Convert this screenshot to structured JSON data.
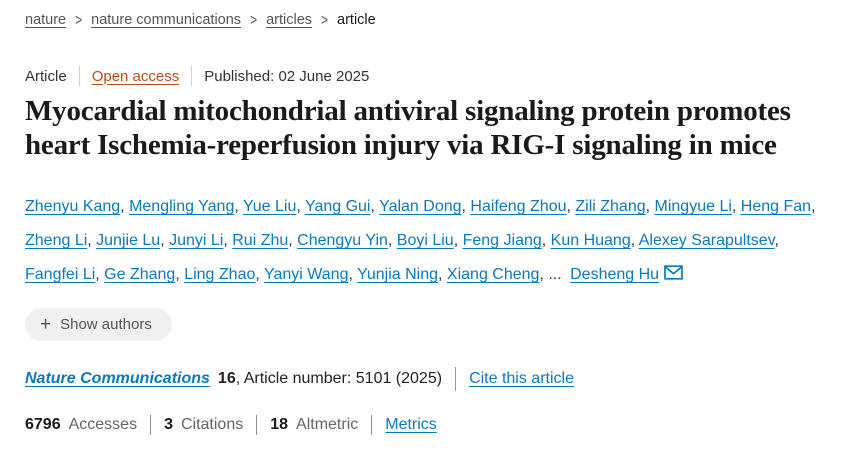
{
  "breadcrumb": {
    "separator": ">",
    "items": [
      {
        "label": "nature",
        "link": true
      },
      {
        "label": "nature communications",
        "link": true
      },
      {
        "label": "articles",
        "link": true
      },
      {
        "label": "article",
        "link": false
      }
    ]
  },
  "article_meta": {
    "type_label": "Article",
    "access_label": "Open access",
    "published_text": "Published: 02 June 2025"
  },
  "title": "Myocardial mitochondrial antiviral signaling protein promotes heart Ischemia-reperfusion injury via RIG-I signaling in mice",
  "authors": {
    "names": [
      "Zhenyu Kang",
      "Mengling Yang",
      "Yue Liu",
      "Yang Gui",
      "Yalan Dong",
      "Haifeng Zhou",
      "Zili Zhang",
      "Mingyue Li",
      "Heng Fan",
      "Zheng Li",
      "Junjie Lu",
      "Junyi Li",
      "Rui Zhu",
      "Chengyu Yin",
      "Boyi Liu",
      "Feng Jiang",
      "Kun Huang",
      "Alexey Sarapultsev",
      "Fangfei Li",
      "Ge Zhang",
      "Ling Zhao",
      "Yanyi Wang",
      "Yunjia Ning",
      "Xiang Cheng"
    ],
    "ellipsis": "...",
    "corresponding": "Desheng Hu",
    "show_authors_label": "Show authors",
    "plus_icon": "+"
  },
  "citation": {
    "journal": "Nature Communications",
    "volume": "16",
    "article_number_text": ", Article number: 5101 (2025)",
    "cite_link_label": "Cite this article"
  },
  "metrics": {
    "accesses_value": "6796",
    "accesses_label": "Accesses",
    "citations_value": "3",
    "citations_label": "Citations",
    "altmetric_value": "18",
    "altmetric_label": "Altmetric",
    "metrics_link_label": "Metrics"
  },
  "colors": {
    "link_blue": "#0b79bd",
    "open_access_orange": "#b94d1e",
    "text_dark": "#1a1a1a",
    "text_gray": "#666666",
    "button_bg": "#f0f0f0"
  }
}
